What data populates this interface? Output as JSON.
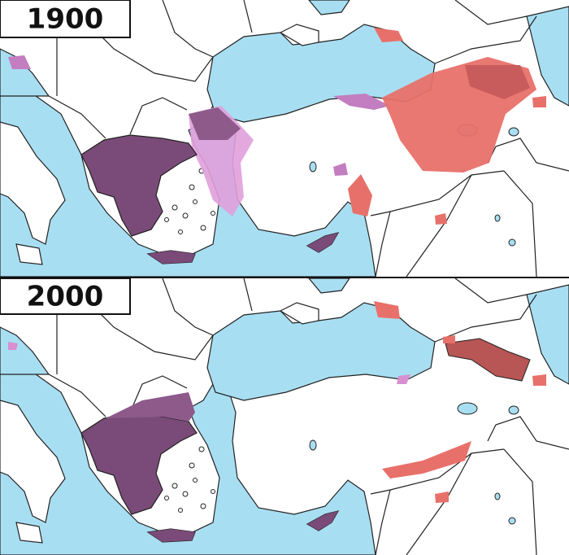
{
  "panels": [
    {
      "label": "1900"
    },
    {
      "label": "2000"
    }
  ]
}
